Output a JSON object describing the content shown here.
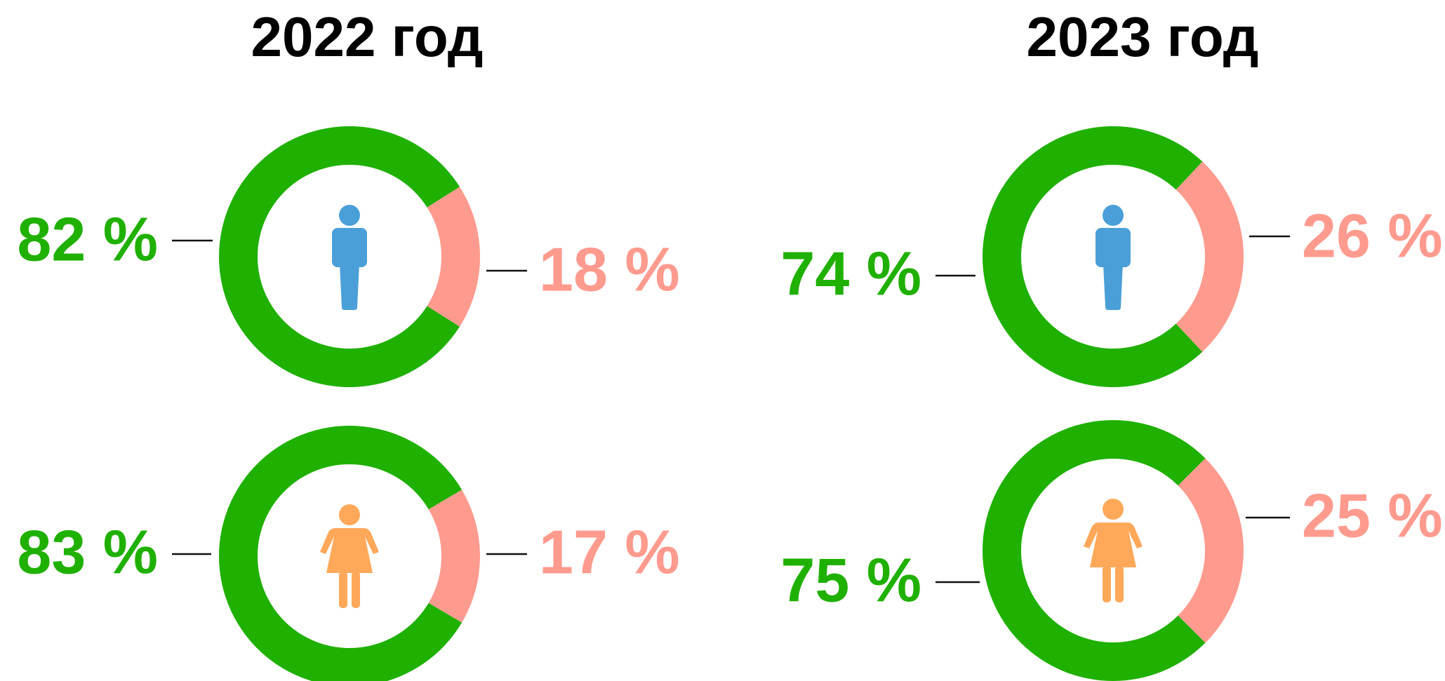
{
  "titles": [
    "2022 год",
    "2023 год"
  ],
  "chart_data": [
    {
      "type": "donut",
      "values": [
        82,
        18
      ],
      "value_labels": [
        "82 %",
        "18 %"
      ],
      "colors": [
        "#1fb000",
        "#ff9a8e"
      ]
    },
    {
      "type": "donut",
      "values": [
        83,
        17
      ],
      "value_labels": [
        "83 %",
        "17 %"
      ],
      "colors": [
        "#1fb000",
        "#ff9a8e"
      ]
    },
    {
      "type": "donut",
      "values": [
        74,
        26
      ],
      "value_labels": [
        "74 %",
        "26 %"
      ],
      "colors": [
        "#1fb000",
        "#ff9a8e"
      ]
    },
    {
      "type": "donut",
      "values": [
        75,
        25
      ],
      "value_labels": [
        "75 %",
        "25 %"
      ],
      "colors": [
        "#1fb000",
        "#ff9a8e"
      ]
    }
  ]
}
